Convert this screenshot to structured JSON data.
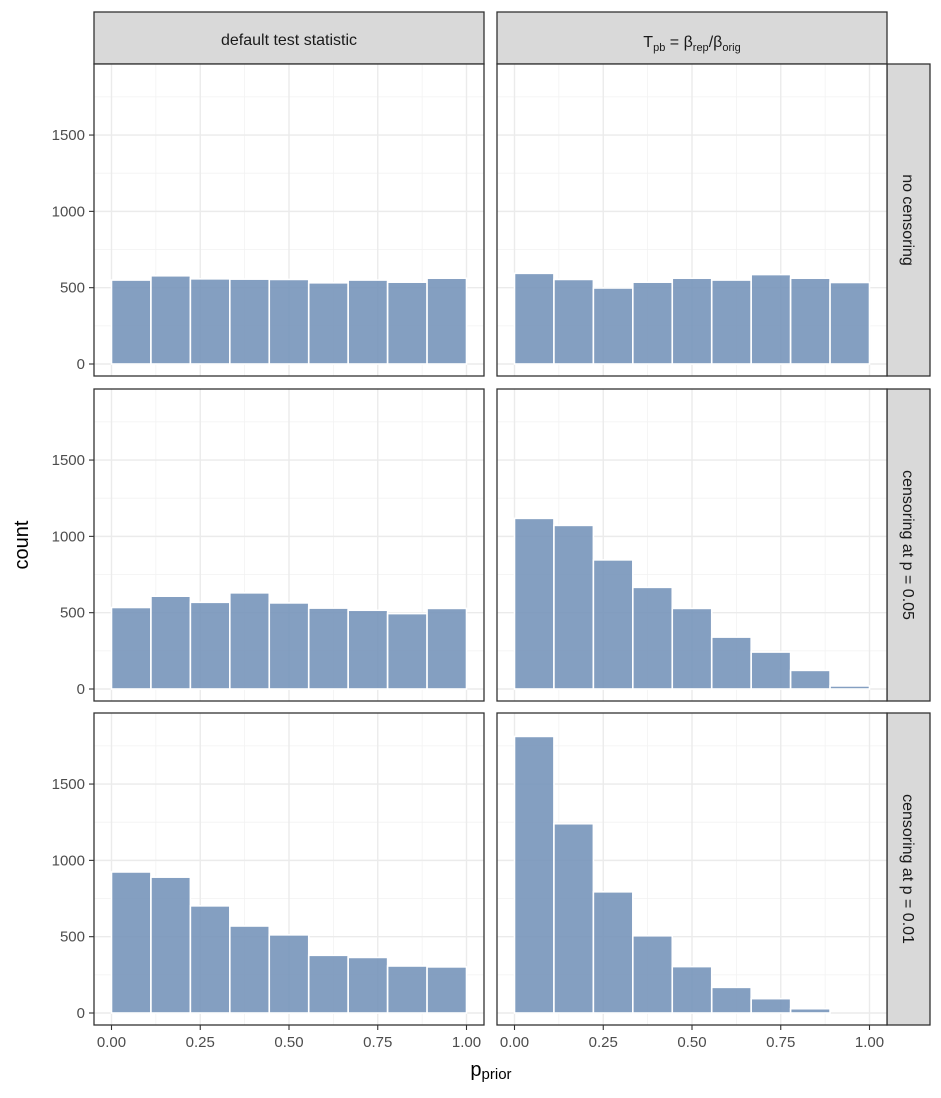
{
  "chart_data": {
    "type": "bar",
    "subtype": "faceted histogram",
    "bar_color": "#7392B8",
    "xlabel_main": "p",
    "xlabel_sub": "prior",
    "ylabel": "count",
    "xlim": [
      0,
      1
    ],
    "ylim": [
      0,
      1900
    ],
    "x_ticks": [
      0,
      0.25,
      0.5,
      0.75,
      1
    ],
    "x_tick_labels": [
      "0.00",
      "0.25",
      "0.50",
      "0.75",
      "1.00"
    ],
    "y_ticks": [
      0,
      500,
      1000,
      1500
    ],
    "y_tick_labels": [
      "0",
      "500",
      "1000",
      "1500"
    ],
    "bin_edges": [
      0.0,
      0.1111,
      0.2222,
      0.3333,
      0.4444,
      0.5556,
      0.6667,
      0.7778,
      0.8889,
      1.0
    ],
    "columns": [
      {
        "label": "default test statistic"
      },
      {
        "label_T": "T",
        "label_pb": "pb",
        "label_eq": "=",
        "label_beta": "β",
        "label_rep": "rep",
        "label_slash": "/",
        "label_orig": "orig"
      }
    ],
    "rows": [
      {
        "label": "no censoring"
      },
      {
        "label": "censoring at p = 0.05"
      },
      {
        "label": "censoring at p = 0.01"
      }
    ],
    "panels": [
      {
        "row": 0,
        "col": 0,
        "values": [
          550,
          578,
          558,
          556,
          554,
          532,
          550,
          536,
          562
        ]
      },
      {
        "row": 0,
        "col": 1,
        "values": [
          594,
          554,
          498,
          536,
          562,
          550,
          586,
          562,
          534
        ]
      },
      {
        "row": 1,
        "col": 0,
        "values": [
          534,
          608,
          568,
          630,
          564,
          530,
          516,
          494,
          528
        ]
      },
      {
        "row": 1,
        "col": 1,
        "values": [
          1118,
          1072,
          846,
          666,
          528,
          340,
          242,
          122,
          20
        ]
      },
      {
        "row": 2,
        "col": 0,
        "values": [
          924,
          890,
          702,
          570,
          512,
          378,
          364,
          308,
          302
        ]
      },
      {
        "row": 2,
        "col": 1,
        "values": [
          1812,
          1240,
          794,
          506,
          304,
          168,
          94,
          28,
          0
        ]
      }
    ]
  }
}
